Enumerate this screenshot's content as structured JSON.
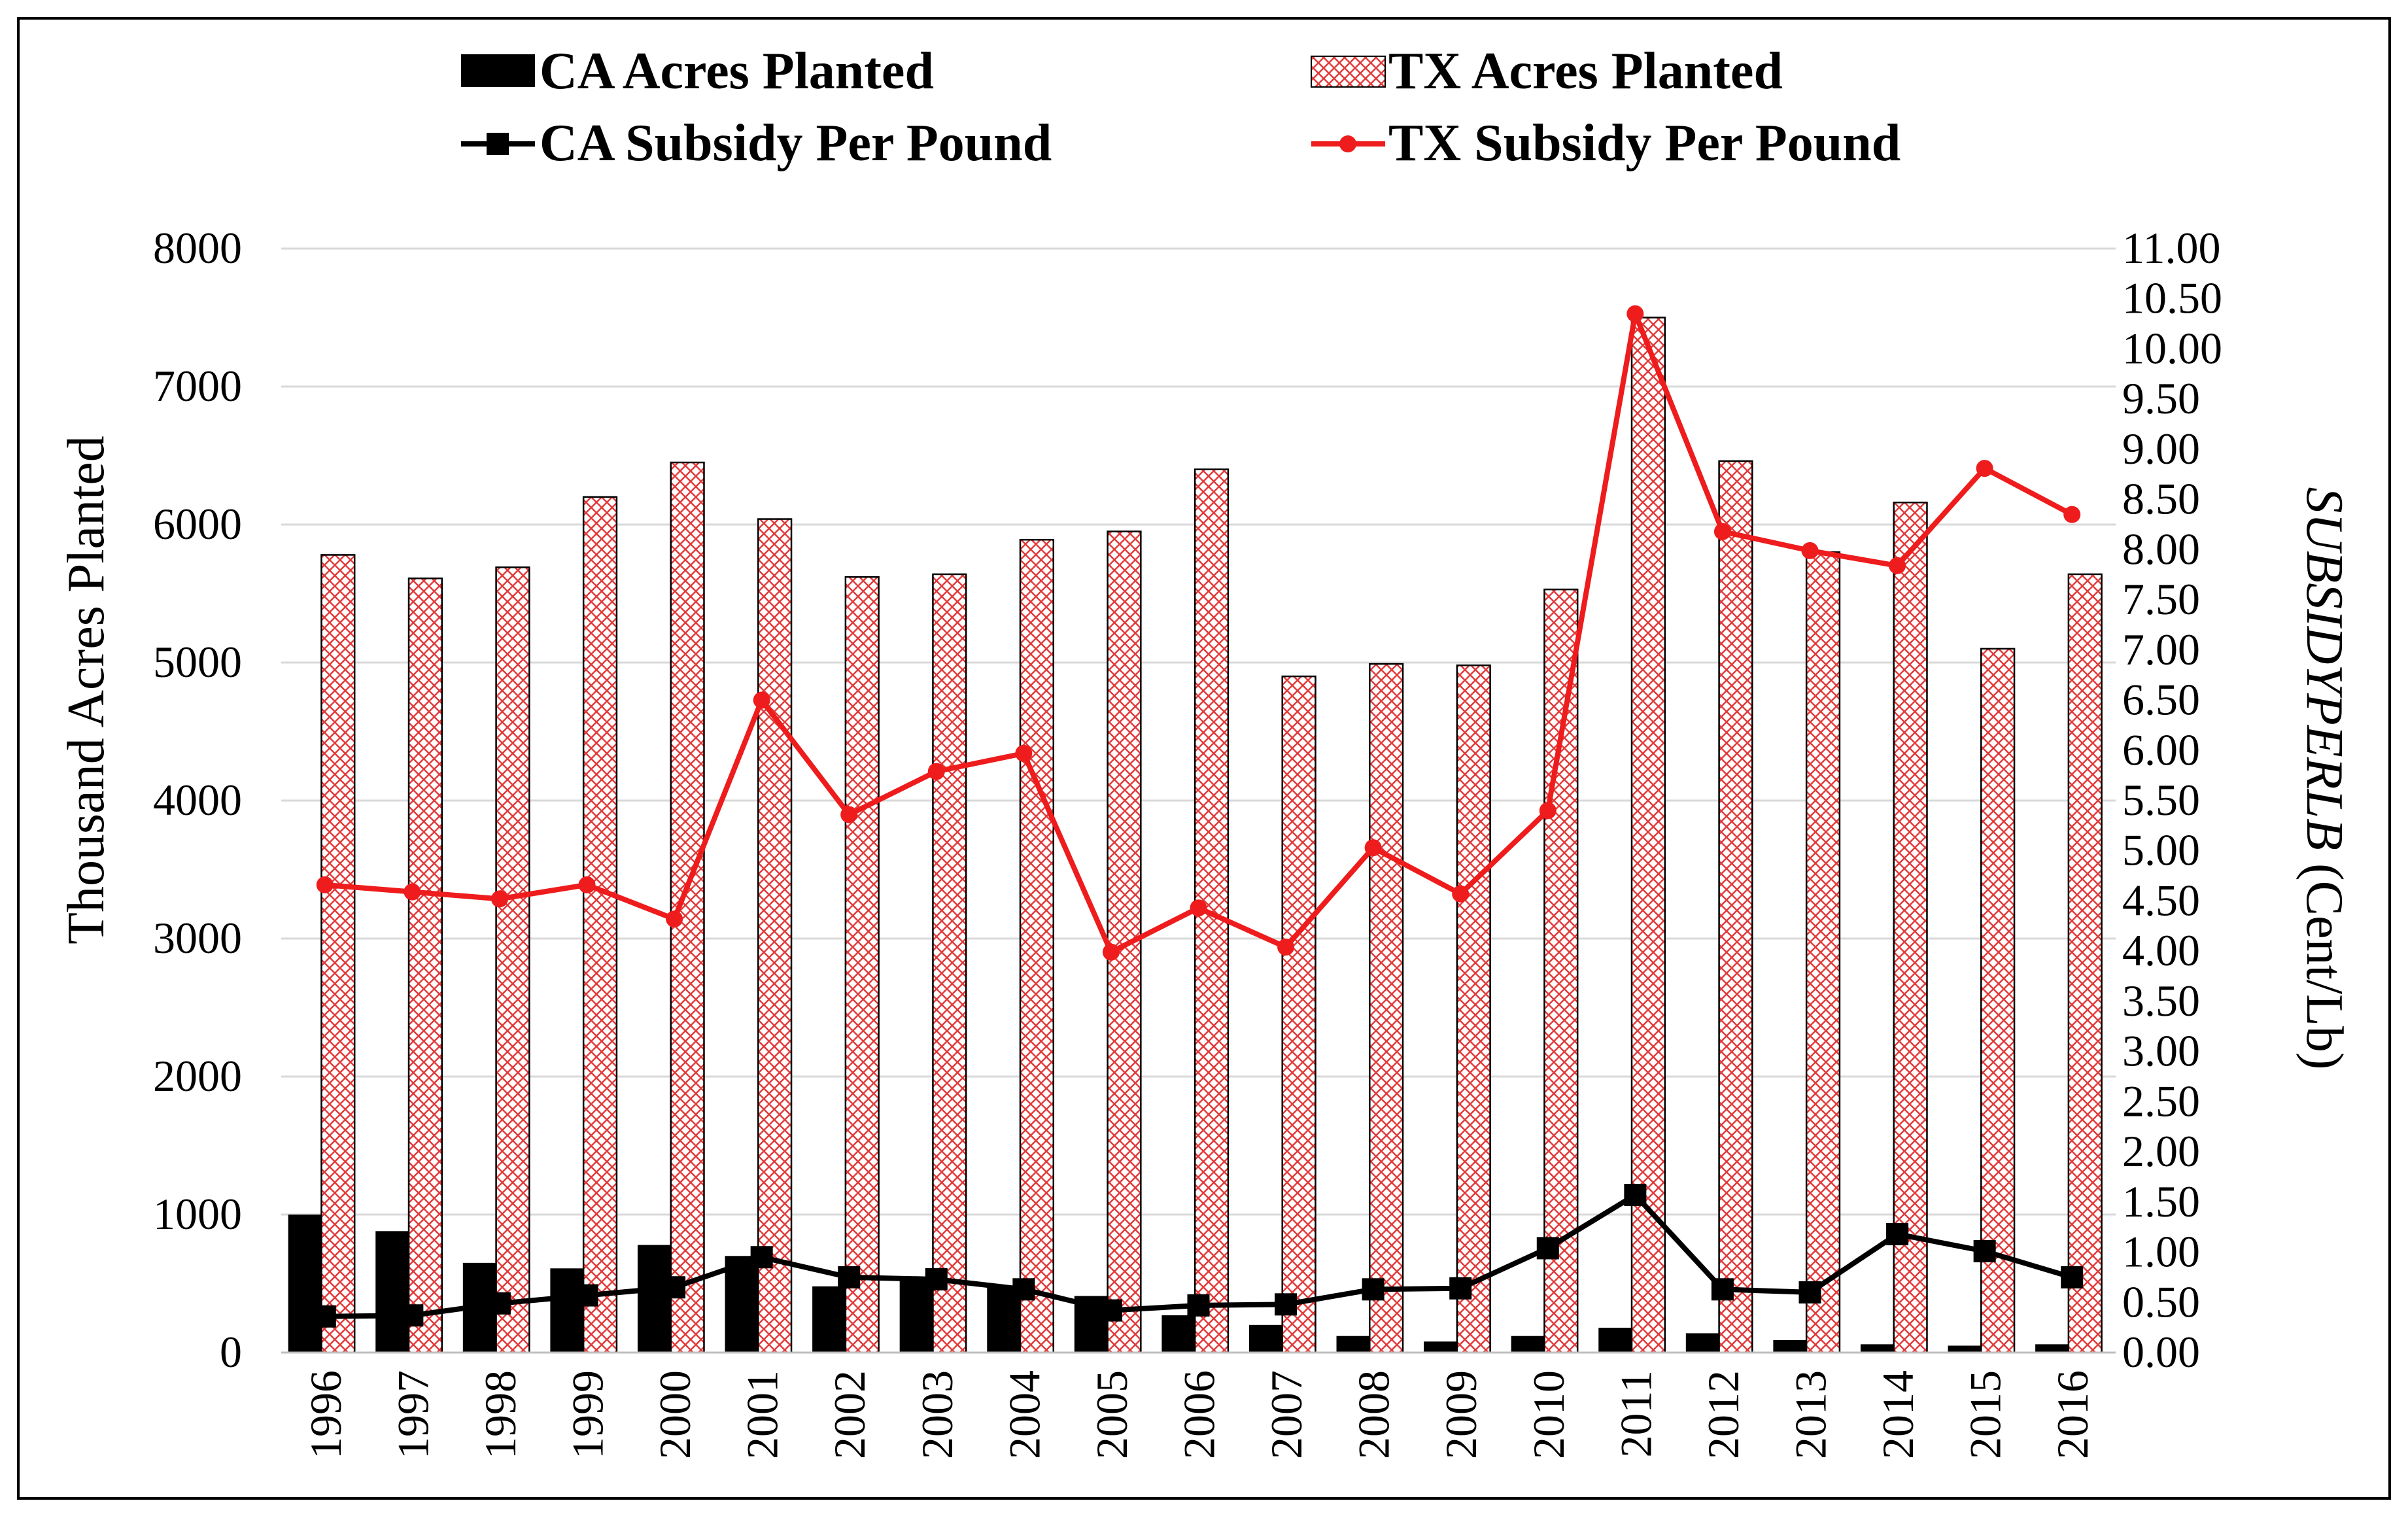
{
  "chart_data": {
    "type": "bar",
    "categories": [
      "1996",
      "1997",
      "1998",
      "1999",
      "2000",
      "2001",
      "2002",
      "2003",
      "2004",
      "2005",
      "2006",
      "2007",
      "2008",
      "2009",
      "2010",
      "2011",
      "2012",
      "2013",
      "2014",
      "2015",
      "2016"
    ],
    "series": [
      {
        "name": "CA Acres Planted",
        "kind": "bar",
        "axis": "left",
        "color": "#000000",
        "values": [
          1000,
          880,
          650,
          610,
          780,
          700,
          480,
          540,
          470,
          410,
          270,
          200,
          120,
          80,
          120,
          180,
          140,
          90,
          60,
          50,
          60
        ]
      },
      {
        "name": "TX Acres Planted",
        "kind": "bar",
        "axis": "left",
        "color": "#e23b3b",
        "pattern": "crosshatch",
        "values": [
          5780,
          5610,
          5690,
          6200,
          6450,
          6040,
          5620,
          5640,
          5890,
          5950,
          6400,
          4900,
          4990,
          4980,
          5530,
          7500,
          6460,
          5800,
          6160,
          5100,
          5640
        ]
      },
      {
        "name": "CA Subsidy Per Pound",
        "kind": "line",
        "axis": "right",
        "color": "#000000",
        "marker": "square",
        "values": [
          0.36,
          0.37,
          0.49,
          0.57,
          0.65,
          0.95,
          0.75,
          0.73,
          0.63,
          0.42,
          0.47,
          0.48,
          0.63,
          0.64,
          1.04,
          1.57,
          0.63,
          0.6,
          1.18,
          1.01,
          0.75
        ]
      },
      {
        "name": "TX Subsidy Per Pound",
        "kind": "line",
        "axis": "right",
        "color": "#ee1c1c",
        "marker": "circle",
        "values": [
          4.66,
          4.59,
          4.52,
          4.66,
          4.32,
          6.5,
          5.36,
          5.79,
          5.97,
          3.99,
          4.43,
          4.04,
          5.03,
          4.57,
          5.4,
          10.35,
          8.18,
          7.99,
          7.84,
          8.81,
          8.35
        ]
      }
    ],
    "left_axis": {
      "label": "Thousand Acres Planted",
      "ylim": [
        0,
        8000
      ],
      "ticks": [
        "0",
        "1000",
        "2000",
        "3000",
        "4000",
        "5000",
        "6000",
        "7000",
        "8000"
      ]
    },
    "right_axis": {
      "label_italic": "SUBSIDYPERLB",
      "label_unit": " (Cent/Lb)",
      "ylim": [
        0,
        11
      ],
      "ticks": [
        "0.00",
        "0.50",
        "1.00",
        "1.50",
        "2.00",
        "2.50",
        "3.00",
        "3.50",
        "4.00",
        "4.50",
        "5.00",
        "5.50",
        "6.00",
        "6.50",
        "7.00",
        "7.50",
        "8.00",
        "8.50",
        "9.00",
        "9.50",
        "10.00",
        "10.50",
        "11.00"
      ]
    },
    "legend": {
      "placement": "top",
      "entries": [
        "CA Acres Planted",
        "TX Acres Planted",
        "CA Subsidy Per Pound",
        "TX Subsidy Per Pound"
      ]
    },
    "grid": true
  }
}
